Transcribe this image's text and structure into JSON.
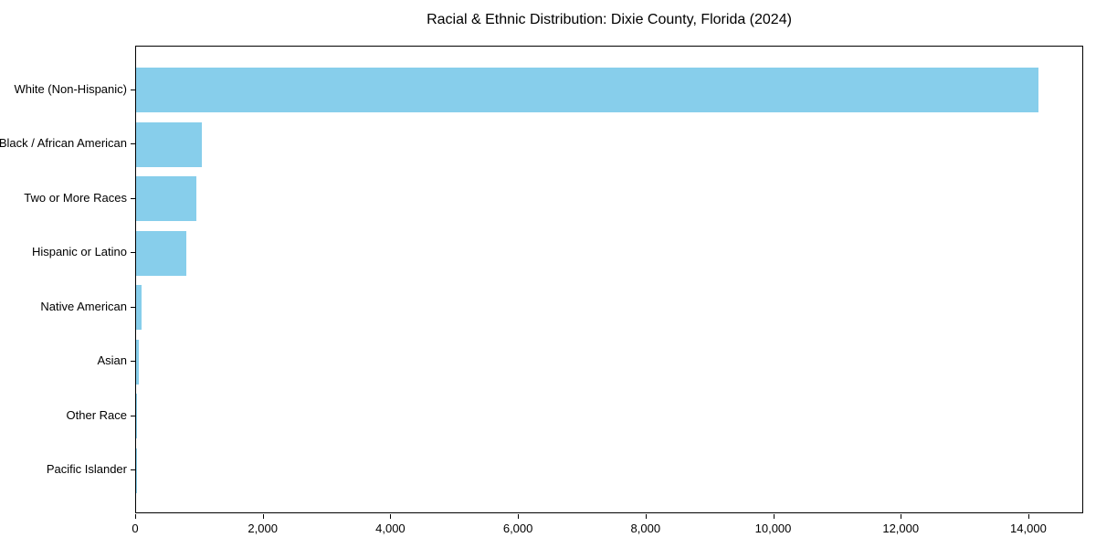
{
  "chart_data": {
    "type": "bar",
    "orientation": "horizontal",
    "title": "Racial & Ethnic Distribution: Dixie County, Florida (2024)",
    "xlabel": "",
    "ylabel": "",
    "categories": [
      "White (Non-Hispanic)",
      "Black / African American",
      "Two or More Races",
      "Hispanic or Latino",
      "Native American",
      "Asian",
      "Other Race",
      "Pacific Islander"
    ],
    "values": [
      14150,
      1025,
      940,
      785,
      80,
      40,
      15,
      5
    ],
    "xlim": [
      0,
      14860
    ],
    "x_ticks": [
      0,
      2000,
      4000,
      6000,
      8000,
      10000,
      12000,
      14000
    ],
    "x_tick_labels": [
      "0",
      "2,000",
      "4,000",
      "6,000",
      "8,000",
      "10,000",
      "12,000",
      "14,000"
    ],
    "bar_color": "#87CEEB",
    "axis_color": "#000000",
    "grid": false,
    "legend": false
  }
}
